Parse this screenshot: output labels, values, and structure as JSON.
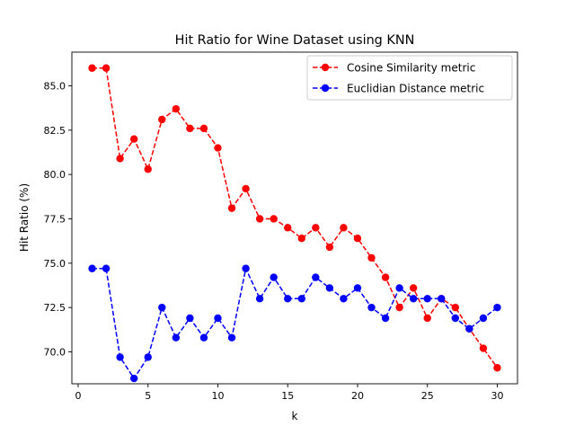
{
  "chart_data": {
    "type": "line",
    "title": "Hit Ratio for Wine Dataset using KNN",
    "xlabel": "k",
    "ylabel": "Hit Ratio (%)",
    "xlim": [
      -0.45,
      31.45
    ],
    "ylim": [
      68.2,
      86.9
    ],
    "xticks": [
      0,
      5,
      10,
      15,
      20,
      25,
      30
    ],
    "xtick_labels": [
      "0",
      "5",
      "10",
      "15",
      "20",
      "25",
      "30"
    ],
    "yticks": [
      70.0,
      72.5,
      75.0,
      77.5,
      80.0,
      82.5,
      85.0
    ],
    "ytick_labels": [
      "70.0",
      "72.5",
      "75.0",
      "77.5",
      "80.0",
      "82.5",
      "85.0"
    ],
    "grid": false,
    "legend_position": "top-right",
    "x": [
      1,
      2,
      3,
      4,
      5,
      6,
      7,
      8,
      9,
      10,
      11,
      12,
      13,
      14,
      15,
      16,
      17,
      18,
      19,
      20,
      21,
      22,
      23,
      24,
      25,
      26,
      27,
      28,
      29,
      30
    ],
    "series": [
      {
        "name": "Cosine Similarity metric",
        "color": "#ff0000",
        "linestyle": "dashed",
        "marker": "circle",
        "values": [
          86.0,
          86.0,
          80.9,
          82.0,
          80.3,
          83.1,
          83.7,
          82.6,
          82.6,
          81.5,
          78.1,
          79.2,
          77.5,
          77.5,
          77.0,
          76.4,
          77.0,
          75.9,
          77.0,
          76.4,
          75.3,
          74.2,
          72.5,
          73.6,
          71.9,
          73.0,
          72.5,
          71.3,
          70.2,
          69.1
        ]
      },
      {
        "name": "Euclidian Distance metric",
        "color": "#0000ff",
        "linestyle": "dashed",
        "marker": "circle",
        "values": [
          74.7,
          74.7,
          69.7,
          68.5,
          69.7,
          72.5,
          70.8,
          71.9,
          70.8,
          71.9,
          70.8,
          74.7,
          73.0,
          74.2,
          73.0,
          73.0,
          74.2,
          73.6,
          73.0,
          73.6,
          72.5,
          71.9,
          73.6,
          73.0,
          73.0,
          73.0,
          71.9,
          71.3,
          71.9,
          72.5
        ]
      }
    ]
  }
}
